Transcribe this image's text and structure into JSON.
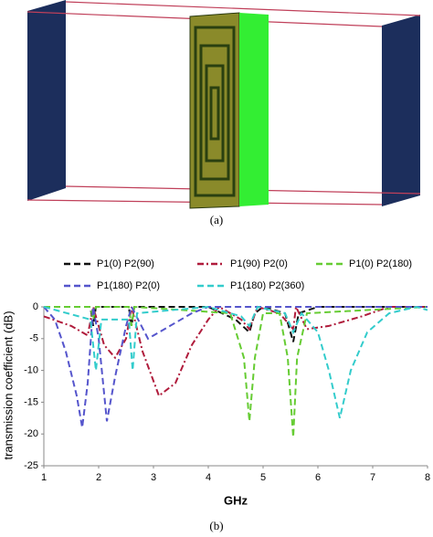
{
  "captions": {
    "a": "(a)",
    "b": "(b)"
  },
  "chart_data": {
    "type": "line",
    "xlabel": "GHz",
    "ylabel": "transmission coefficient (dB)",
    "xlim": [
      1,
      8
    ],
    "xticks": [
      1,
      2,
      3,
      4,
      5,
      6,
      7,
      8
    ],
    "ylim": [
      -25,
      0
    ],
    "yticks": [
      0,
      -5,
      -10,
      -15,
      -20,
      -25
    ],
    "grid": false,
    "series": [
      {
        "name": "P1(0) P2(90)",
        "color": "#111111",
        "style": "dashed",
        "x": [
          1,
          1.85,
          1.9,
          1.95,
          2.55,
          2.6,
          2.65,
          4.0,
          4.5,
          4.75,
          4.85,
          5.0,
          5.4,
          5.55,
          5.65,
          6.0,
          8
        ],
        "values": [
          0,
          0,
          -3,
          0,
          0,
          -3,
          0,
          0,
          -2,
          -4,
          -1,
          0,
          -1,
          -5.5,
          -1,
          0,
          0
        ]
      },
      {
        "name": "P1(90) P2(0)",
        "color": "#b01c3c",
        "style": "dash-dot",
        "x": [
          1,
          1.5,
          1.8,
          1.9,
          2.1,
          2.3,
          2.5,
          2.6,
          2.8,
          3.1,
          3.4,
          3.7,
          4.0,
          4.2,
          4.6,
          4.75,
          4.9,
          5.3,
          5.55,
          5.6,
          5.8,
          6.2,
          6.8,
          7.3,
          8
        ],
        "values": [
          -1.5,
          -3,
          -4.5,
          0,
          -6,
          -8,
          -5,
          0,
          -7,
          -14,
          -12,
          -6,
          -2,
          0,
          -2,
          -3.5,
          0,
          -1,
          -3.5,
          0,
          -3.5,
          -3,
          -1.5,
          0,
          0
        ]
      },
      {
        "name": "P1(0) P2(180)",
        "color": "#66cc33",
        "style": "dashed",
        "x": [
          1,
          1.85,
          1.9,
          1.95,
          2.55,
          2.6,
          2.65,
          4.4,
          4.65,
          4.75,
          4.85,
          5.0,
          5.3,
          5.45,
          5.55,
          5.62,
          5.8,
          8
        ],
        "values": [
          0,
          0,
          -2,
          0,
          0,
          -3,
          0,
          -1,
          -8,
          -18,
          -8,
          -1,
          -1,
          -8,
          -20.5,
          -8,
          -1,
          0
        ]
      },
      {
        "name": "P1(180) P2(0)",
        "color": "#5555cc",
        "style": "dashed",
        "x": [
          1,
          1.2,
          1.4,
          1.6,
          1.7,
          1.8,
          1.9,
          2.0,
          2.15,
          2.3,
          2.5,
          2.6,
          2.9,
          3.3,
          3.7,
          4.0,
          8
        ],
        "values": [
          0,
          -2,
          -7,
          -14,
          -19,
          -12,
          0,
          -5,
          -18,
          -11,
          -3,
          0,
          -5,
          -3,
          -1,
          0,
          0
        ]
      },
      {
        "name": "P1(180) P2(360)",
        "color": "#33cccc",
        "style": "dashed",
        "x": [
          1,
          1.85,
          1.95,
          2.05,
          2.55,
          2.62,
          2.7,
          4.0,
          4.6,
          4.75,
          4.9,
          5.4,
          5.55,
          5.7,
          6.0,
          6.2,
          6.4,
          6.6,
          6.9,
          7.3,
          7.8,
          8
        ],
        "values": [
          0,
          -2,
          -10,
          -2,
          -2,
          -10,
          -1,
          0,
          -1.5,
          -3,
          0,
          -1,
          -4,
          -1,
          -4,
          -10,
          -17.5,
          -10,
          -4,
          -1,
          0,
          -0.5
        ]
      }
    ]
  }
}
